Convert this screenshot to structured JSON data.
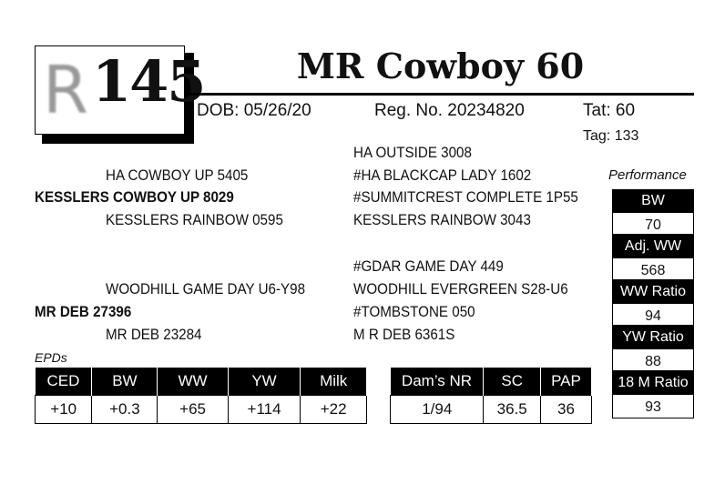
{
  "lot": {
    "logo_letter": "R",
    "number": "145"
  },
  "title": "MR Cowboy 60",
  "info": {
    "dob": "DOB: 05/26/20",
    "reg": "Reg. No. 20234820",
    "tat": "Tat: 60",
    "tag": "Tag: 133"
  },
  "pedigree": {
    "sire": "KESSLERS COWBOY UP 8029",
    "sire_sire": "HA COWBOY UP 5405",
    "sire_dam": "KESSLERS RAINBOW 0595",
    "sss": "HA OUTSIDE 3008",
    "ssd": "#HA BLACKCAP LADY 1602",
    "sds": "#SUMMITCREST COMPLETE 1P55",
    "sdd": "KESSLERS RAINBOW 3043",
    "dam": "MR DEB 27396",
    "dam_sire": "WOODHILL GAME DAY U6-Y98",
    "dam_dam": "MR DEB 23284",
    "dss": "#GDAR GAME DAY 449",
    "dsd": "WOODHILL EVERGREEN S28-U6",
    "dds": "#TOMBSTONE 050",
    "ddd": "M R DEB 6361S"
  },
  "performance": {
    "label": "Performance",
    "items": [
      {
        "label": "BW",
        "value": "70"
      },
      {
        "label": "Adj. WW",
        "value": "568"
      },
      {
        "label": "WW Ratio",
        "value": "94"
      },
      {
        "label": "YW Ratio",
        "value": "88"
      },
      {
        "label": "18 M Ratio",
        "value": "93"
      }
    ]
  },
  "epds": {
    "label": "EPDs",
    "headers": [
      "CED",
      "BW",
      "WW",
      "YW",
      "Milk"
    ],
    "values": [
      "+10",
      "+0.3",
      "+65",
      "+114",
      "+22"
    ]
  },
  "other": {
    "headers": [
      "Dam’s NR",
      "SC",
      "PAP"
    ],
    "values": [
      "1/94",
      "36.5",
      "36"
    ]
  }
}
